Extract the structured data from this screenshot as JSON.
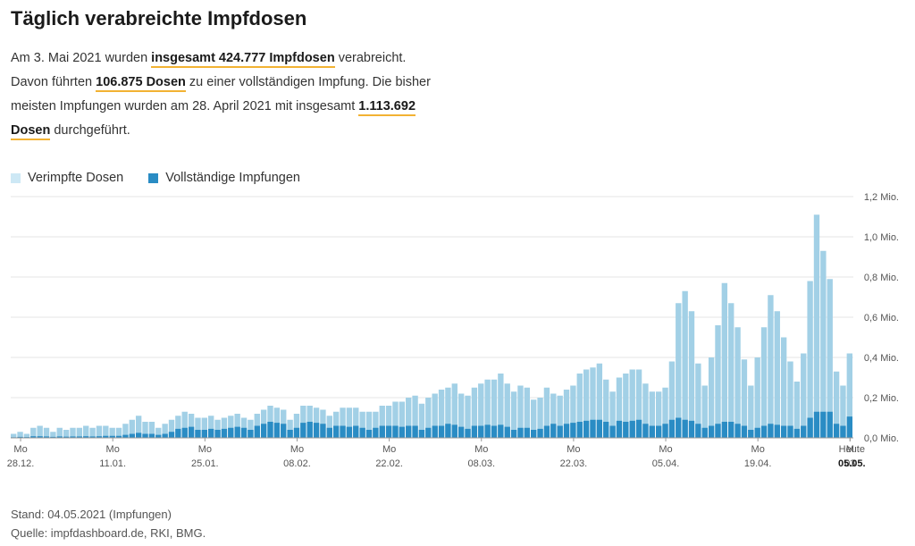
{
  "title": "Täglich verabreichte Impfdosen",
  "intro": {
    "p1": "Am 3. Mai 2021 wurden ",
    "h1": "insgesamt 424.777 Impfdosen",
    "p2": " verabreicht.",
    "p3": "Davon führten ",
    "h2": "106.875 Dosen",
    "p4": " zu einer vollständigen Impfung. Die bisher meisten Impfungen wurden am 28. April 2021 mit insgesamt ",
    "h3": "1.113.692 Dosen",
    "p5": " durchgeführt."
  },
  "legend": [
    {
      "label": "Verimpfte Dosen",
      "color": "#cde8f5"
    },
    {
      "label": "Vollständige Impfungen",
      "color": "#2a8cc4"
    }
  ],
  "footer": {
    "stand": "Stand: 04.05.2021 (Impfungen)",
    "quelle": "Quelle: impfdashboard.de, RKI, BMG."
  },
  "chart_data": {
    "type": "bar",
    "colors": {
      "total": "#a2d0e6",
      "complete": "#2a8cc4",
      "grid": "#e6e6e6",
      "axis": "#999999"
    },
    "ylim": [
      0,
      1.2
    ],
    "yticks": [
      {
        "v": 0,
        "label": "0,0 Mio."
      },
      {
        "v": 0.2,
        "label": "0,2 Mio."
      },
      {
        "v": 0.4,
        "label": "0,4 Mio."
      },
      {
        "v": 0.6,
        "label": "0,6 Mio."
      },
      {
        "v": 0.8,
        "label": "0,8 Mio."
      },
      {
        "v": 1.0,
        "label": "1,0 Mio."
      },
      {
        "v": 1.2,
        "label": "1,2 Mio."
      }
    ],
    "xticks": [
      {
        "i": 1,
        "top": "Mo",
        "bottom": "28.12."
      },
      {
        "i": 15,
        "top": "Mo",
        "bottom": "11.01."
      },
      {
        "i": 29,
        "top": "Mo",
        "bottom": "25.01."
      },
      {
        "i": 43,
        "top": "Mo",
        "bottom": "08.02."
      },
      {
        "i": 57,
        "top": "Mo",
        "bottom": "22.02."
      },
      {
        "i": 71,
        "top": "Mo",
        "bottom": "08.03."
      },
      {
        "i": 85,
        "top": "Mo",
        "bottom": "22.03."
      },
      {
        "i": 99,
        "top": "Mo",
        "bottom": "05.04."
      },
      {
        "i": 113,
        "top": "Mo",
        "bottom": "19.04."
      },
      {
        "i": 127,
        "top": "M",
        "bottom": "03"
      }
    ],
    "today": {
      "top": "Heute",
      "bottom": "05.05."
    },
    "total": [
      0.02,
      0.03,
      0.02,
      0.05,
      0.06,
      0.05,
      0.03,
      0.05,
      0.04,
      0.05,
      0.05,
      0.06,
      0.05,
      0.06,
      0.06,
      0.05,
      0.05,
      0.07,
      0.09,
      0.11,
      0.08,
      0.08,
      0.05,
      0.07,
      0.09,
      0.11,
      0.13,
      0.12,
      0.1,
      0.1,
      0.11,
      0.09,
      0.1,
      0.11,
      0.12,
      0.1,
      0.09,
      0.12,
      0.14,
      0.16,
      0.15,
      0.14,
      0.09,
      0.12,
      0.16,
      0.16,
      0.15,
      0.14,
      0.11,
      0.13,
      0.15,
      0.15,
      0.15,
      0.13,
      0.13,
      0.13,
      0.16,
      0.16,
      0.18,
      0.18,
      0.2,
      0.21,
      0.17,
      0.2,
      0.22,
      0.24,
      0.25,
      0.27,
      0.22,
      0.21,
      0.25,
      0.27,
      0.29,
      0.29,
      0.32,
      0.27,
      0.23,
      0.26,
      0.25,
      0.19,
      0.2,
      0.25,
      0.22,
      0.21,
      0.24,
      0.26,
      0.32,
      0.34,
      0.35,
      0.37,
      0.29,
      0.23,
      0.3,
      0.32,
      0.34,
      0.34,
      0.27,
      0.23,
      0.23,
      0.25,
      0.38,
      0.67,
      0.73,
      0.63,
      0.37,
      0.26,
      0.4,
      0.56,
      0.77,
      0.67,
      0.55,
      0.39,
      0.26,
      0.4,
      0.55,
      0.71,
      0.63,
      0.5,
      0.38,
      0.28,
      0.42,
      0.78,
      1.11,
      0.93,
      0.79,
      0.33,
      0.26,
      0.42
    ],
    "complete": [
      0.003,
      0.005,
      0.004,
      0.008,
      0.008,
      0.007,
      0.005,
      0.007,
      0.006,
      0.007,
      0.007,
      0.008,
      0.007,
      0.008,
      0.01,
      0.01,
      0.01,
      0.015,
      0.02,
      0.025,
      0.02,
      0.02,
      0.015,
      0.02,
      0.03,
      0.045,
      0.05,
      0.055,
      0.04,
      0.04,
      0.045,
      0.04,
      0.045,
      0.05,
      0.055,
      0.05,
      0.04,
      0.06,
      0.07,
      0.08,
      0.075,
      0.07,
      0.04,
      0.05,
      0.075,
      0.08,
      0.075,
      0.07,
      0.05,
      0.06,
      0.06,
      0.055,
      0.06,
      0.05,
      0.04,
      0.05,
      0.06,
      0.06,
      0.06,
      0.055,
      0.06,
      0.06,
      0.04,
      0.05,
      0.06,
      0.06,
      0.07,
      0.065,
      0.055,
      0.045,
      0.06,
      0.06,
      0.065,
      0.06,
      0.065,
      0.055,
      0.04,
      0.05,
      0.05,
      0.04,
      0.045,
      0.06,
      0.07,
      0.06,
      0.07,
      0.075,
      0.08,
      0.085,
      0.09,
      0.09,
      0.08,
      0.06,
      0.085,
      0.08,
      0.085,
      0.09,
      0.07,
      0.06,
      0.06,
      0.07,
      0.09,
      0.1,
      0.09,
      0.085,
      0.07,
      0.05,
      0.06,
      0.07,
      0.08,
      0.08,
      0.07,
      0.06,
      0.04,
      0.05,
      0.06,
      0.07,
      0.065,
      0.06,
      0.06,
      0.045,
      0.06,
      0.1,
      0.13,
      0.13,
      0.13,
      0.07,
      0.06,
      0.106
    ]
  }
}
